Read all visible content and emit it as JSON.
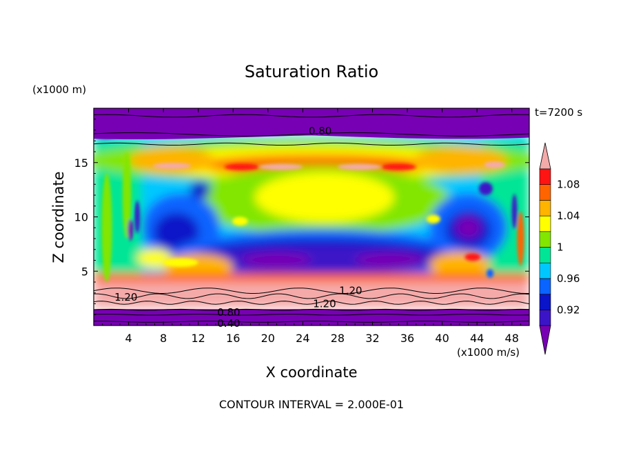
{
  "chart_data": {
    "type": "heatmap",
    "title": "Saturation Ratio",
    "xlabel": "X coordinate",
    "ylabel": "Z coordinate",
    "x_unit_label": "(x1000 m/s)",
    "y_unit_label": "(x1000 m)",
    "time_label": "t=7200 s",
    "footer": "CONTOUR INTERVAL = 2.000E-01",
    "xlim": [
      0,
      50
    ],
    "ylim": [
      0,
      20
    ],
    "x_ticks": [
      4,
      8,
      12,
      16,
      20,
      24,
      28,
      32,
      36,
      40,
      44,
      48
    ],
    "y_ticks": [
      5,
      10,
      15
    ],
    "colorbar": {
      "levels": [
        0.9,
        0.92,
        0.94,
        0.96,
        0.98,
        1.0,
        1.02,
        1.04,
        1.06,
        1.08,
        1.1
      ],
      "colors": [
        "#7800b4",
        "#3c14c8",
        "#0a14c8",
        "#0a64ff",
        "#00c8ff",
        "#00e696",
        "#82e600",
        "#ffff00",
        "#ffb400",
        "#ff6400",
        "#ff1414",
        "#f5aaaa"
      ],
      "labels": [
        {
          "value": 0.92,
          "text": "0.92"
        },
        {
          "value": 0.96,
          "text": "0.96"
        },
        {
          "value": 1.0,
          "text": "1"
        },
        {
          "value": 1.04,
          "text": "1.04"
        },
        {
          "value": 1.08,
          "text": "1.08"
        }
      ],
      "extend": "both"
    },
    "contour_labels": [
      {
        "text": "0.80",
        "x": 26,
        "y": 17.9
      },
      {
        "text": "1.20",
        "x": 29.5,
        "y": 3.2
      },
      {
        "text": "1.20",
        "x": 26.5,
        "y": 2.0
      },
      {
        "text": "1.20",
        "x": 3.7,
        "y": 2.6
      },
      {
        "text": "0.80",
        "x": 15.5,
        "y": 1.2
      },
      {
        "text": "0.40",
        "x": 15.5,
        "y": 0.2
      }
    ]
  }
}
